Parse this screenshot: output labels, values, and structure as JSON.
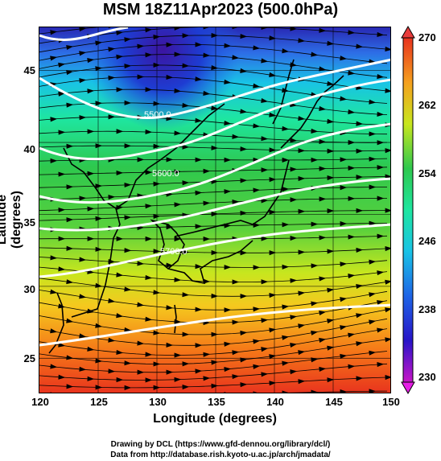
{
  "title": "MSM 18Z11Apr2023 (500.0hPa)",
  "xaxis": {
    "label": "Longitude (degrees)",
    "ticks": [
      "120",
      "125",
      "130",
      "135",
      "140",
      "145",
      "150"
    ]
  },
  "yaxis": {
    "label": "Latitude  (degrees)",
    "ticks": [
      "45",
      "40",
      "35",
      "30",
      "25"
    ]
  },
  "colorbar": {
    "ticks": [
      "270",
      "262",
      "254",
      "246",
      "238",
      "230"
    ],
    "range": [
      230,
      270
    ]
  },
  "contours": {
    "labels": [
      "5500.0",
      "5600.0",
      "5700.0"
    ]
  },
  "footer": {
    "line1": "Drawing by DCL (https://www.gfd-dennou.org/library/dcl/)",
    "line2": "Data from http://database.rish.kyoto-u.ac.jp/arch/jmadata/"
  },
  "map": {
    "lon_range": [
      120,
      150
    ],
    "lat_range": [
      22.5,
      48
    ],
    "field": "temperature (K) shaded, streamlines, geopotential height contours"
  }
}
